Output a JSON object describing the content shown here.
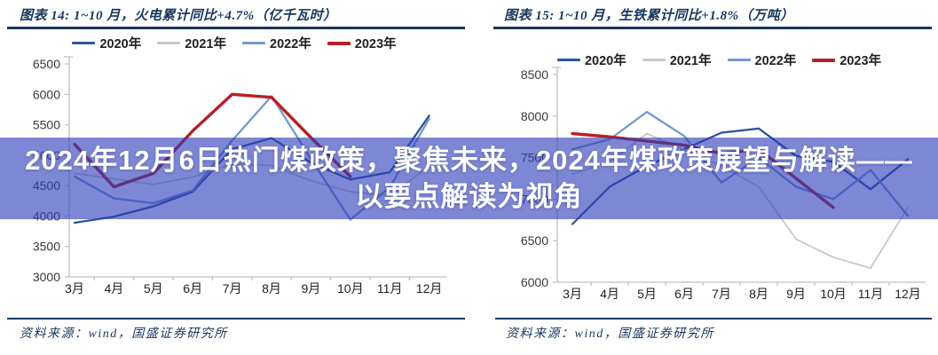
{
  "banner": {
    "line1": "2024年12月6日热门煤政策，聚焦未来，2024年煤政策展望与解读——",
    "line2": "以要点解读为视角",
    "bg_color": "#2D3EB9",
    "text_color": "#FFFFFF"
  },
  "colors": {
    "title_navy": "#17375E",
    "axis_gray": "#BFBFBF",
    "tick_label": "#3A3A3A",
    "series_2020": "#2A5699",
    "series_2021": "#C9C9C9",
    "series_2022": "#7399CE",
    "series_2023": "#B42025"
  },
  "chart_data": [
    {
      "type": "line",
      "title": "图表 14:  1~10 月，火电累计同比+4.7%（亿千瓦时）",
      "source": "资料来源：wind，国盛证券研究所",
      "categories": [
        "3月",
        "4月",
        "5月",
        "6月",
        "7月",
        "8月",
        "9月",
        "10月",
        "11月",
        "12月"
      ],
      "ylim": [
        3000,
        6500
      ],
      "yticks": [
        6500,
        6000,
        5500,
        5000,
        4500,
        4000,
        3500,
        3000
      ],
      "grid": false,
      "legend_position": "top",
      "series": [
        {
          "name": "2020年",
          "color": "#2A5699",
          "width": 2.3,
          "values": [
            3890,
            3990,
            4160,
            4400,
            5100,
            5280,
            4880,
            4600,
            4720,
            5650
          ]
        },
        {
          "name": "2021年",
          "color": "#C9C9C9",
          "width": 1.8,
          "values": [
            4700,
            4610,
            4520,
            4640,
            4860,
            4830,
            4580,
            4400,
            4330,
            4820
          ]
        },
        {
          "name": "2022年",
          "color": "#7399CE",
          "width": 2.3,
          "values": [
            4650,
            4290,
            4210,
            4420,
            5240,
            5970,
            4940,
            3940,
            4470,
            5600
          ]
        },
        {
          "name": "2023年",
          "color": "#B42025",
          "width": 3.4,
          "values": [
            5180,
            4480,
            4700,
            5400,
            6000,
            5950,
            5290,
            4650,
            null,
            null
          ]
        }
      ]
    },
    {
      "type": "line",
      "title": "图表 15:  1~10 月，生铁累计同比+1.8%（万吨）",
      "source": "资料来源：wind，国盛证券研究所",
      "categories": [
        "3月",
        "4月",
        "5月",
        "6月",
        "7月",
        "8月",
        "9月",
        "10月",
        "11月",
        "12月"
      ],
      "ylim": [
        6000,
        8500
      ],
      "yticks": [
        8500,
        8000,
        7500,
        7000,
        6500,
        6000
      ],
      "grid": false,
      "legend_position": "top",
      "series": [
        {
          "name": "2020年",
          "color": "#2A5699",
          "width": 2.3,
          "values": [
            6700,
            7150,
            7400,
            7600,
            7800,
            7850,
            7520,
            7450,
            7120,
            7480
          ]
        },
        {
          "name": "2021年",
          "color": "#C9C9C9",
          "width": 1.8,
          "values": [
            7300,
            7450,
            7790,
            7590,
            7400,
            7150,
            6520,
            6300,
            6170,
            6900
          ]
        },
        {
          "name": "2022年",
          "color": "#7399CE",
          "width": 2.3,
          "values": [
            7600,
            7720,
            8050,
            7760,
            7200,
            7500,
            7150,
            7000,
            7350,
            6800
          ]
        },
        {
          "name": "2023年",
          "color": "#B42025",
          "width": 3.4,
          "values": [
            7790,
            7750,
            7700,
            7650,
            7550,
            7600,
            7250,
            6900,
            null,
            null
          ]
        }
      ]
    }
  ]
}
